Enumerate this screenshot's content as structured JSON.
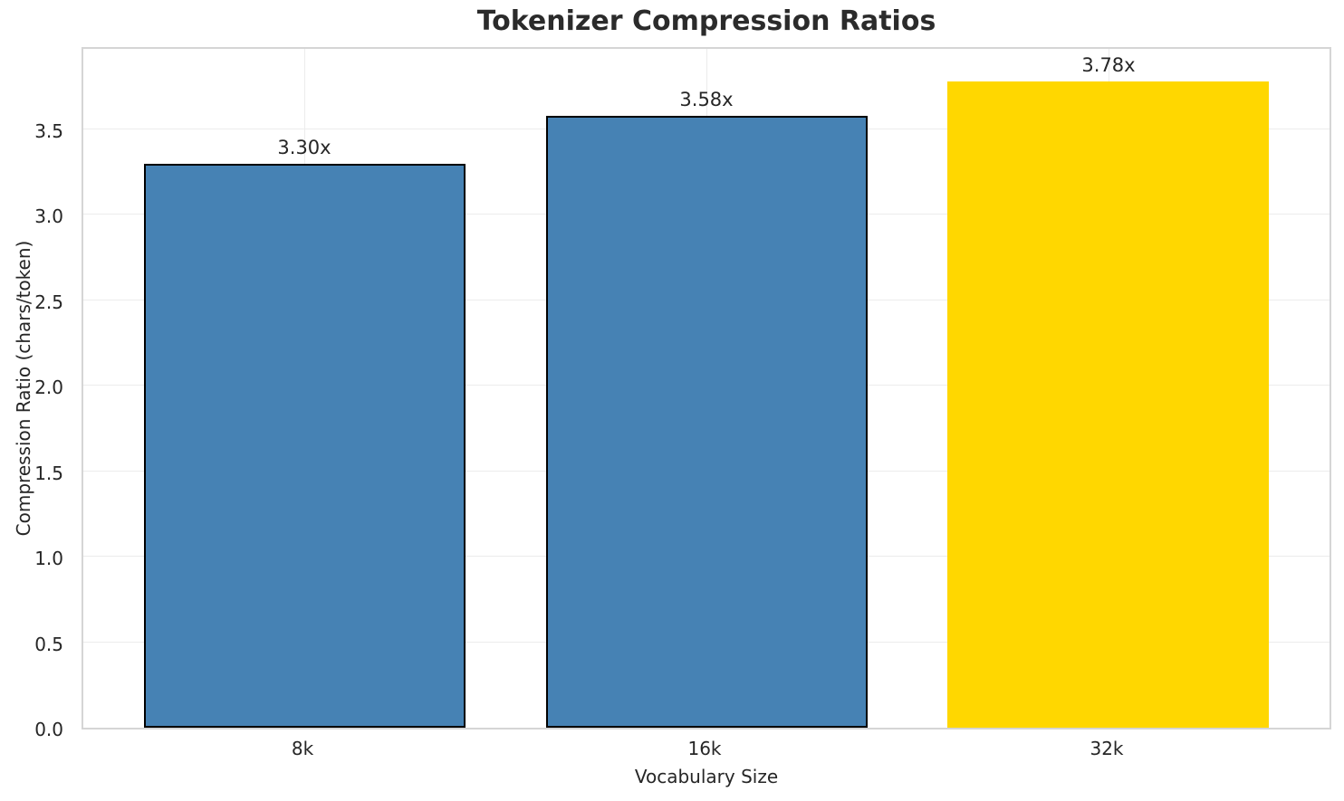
{
  "chart_data": {
    "type": "bar",
    "title": "Tokenizer Compression Ratios",
    "xlabel": "Vocabulary Size",
    "ylabel": "Compression Ratio (chars/token)",
    "categories": [
      "8k",
      "16k",
      "32k"
    ],
    "values": [
      3.3,
      3.58,
      3.78
    ],
    "value_labels": [
      "3.30x",
      "3.58x",
      "3.78x"
    ],
    "bar_colors": [
      "#4682B4",
      "#4682B4",
      "#FFD700"
    ],
    "bar_edge_colors": [
      "#000000",
      "#000000",
      "#FFD700"
    ],
    "ylim": [
      0,
      3.97
    ],
    "yticks": [
      0.0,
      0.5,
      1.0,
      1.5,
      2.0,
      2.5,
      3.0,
      3.5
    ],
    "ytick_labels": [
      "0.0",
      "0.5",
      "1.0",
      "1.5",
      "2.0",
      "2.5",
      "3.0",
      "3.5"
    ],
    "grid": "both",
    "legend_position": "none"
  },
  "colors": {
    "bar_blue": "#4682B4",
    "bar_gold": "#FFD700",
    "gridline": "#ececec",
    "spine": "#d5d5d5",
    "text": "#262626",
    "background": "#ffffff"
  }
}
